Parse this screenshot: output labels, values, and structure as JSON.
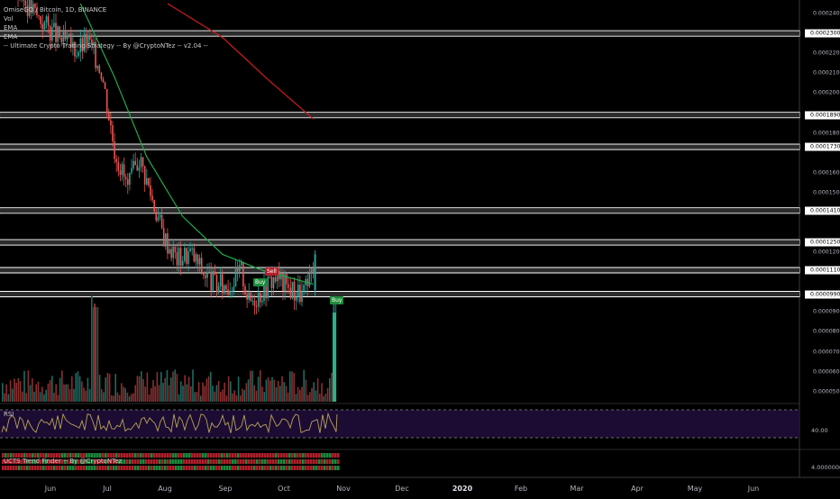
{
  "header": {
    "symbol_line": "OmiseGO / Bitcoin, 1D, BINANCE",
    "indicators": [
      "Vol",
      "EMA",
      "EMA",
      "-- Ultimate Crypto Trading Strategy -- By @CryptoNTez -- v2.04 --"
    ]
  },
  "panes": {
    "rsi_title": "RSI",
    "rsi_value_label": "40.00",
    "trend_title": "UCTS Trend Finder -- By @CryptoNTez",
    "trend_value_label": "4.00000000"
  },
  "x_axis": {
    "months": [
      "Jun",
      "Jul",
      "Aug",
      "Sep",
      "Oct",
      "Nov",
      "Dec",
      "2020",
      "Feb",
      "Mar",
      "Apr",
      "May",
      "Jun"
    ]
  },
  "y_axis": {
    "ticks": [
      "0.00024000",
      "0.00022000",
      "0.00021000",
      "0.00020000",
      "0.00018000",
      "0.00016000",
      "0.00015000",
      "0.00012000",
      "0.00009000",
      "0.00008000",
      "0.00007000",
      "0.00006000",
      "0.00005000"
    ],
    "level_labels": [
      "0.00023000",
      "0.00018900",
      "0.00017300",
      "0.00014100",
      "0.00012500",
      "0.00011100",
      "0.00009900"
    ]
  },
  "signals": [
    {
      "text": "Buy",
      "type": "buy"
    },
    {
      "text": "Sell",
      "type": "sell"
    },
    {
      "text": "Buy",
      "type": "buy"
    }
  ],
  "colors": {
    "background": "#000000",
    "up": "#26a69a",
    "down": "#ef5350",
    "ema_fast": "#1faa4c",
    "ema_slow": "#d11a1a",
    "rsi": "#b8a35a",
    "rsi_band": "#1c0c33",
    "level_band": "#ffffff"
  },
  "chart_data": {
    "type": "candlestick",
    "title": "OmiseGO / Bitcoin, 1D, BINANCE",
    "ylim": [
      4.4e-05,
      0.000245
    ],
    "levels": [
      0.00023,
      0.000189,
      0.000173,
      0.000141,
      0.000125,
      0.000111,
      9.9e-05
    ],
    "trend": [
      {
        "date": "2019-05-25",
        "close": 0.00025
      },
      {
        "date": "2019-06-05",
        "close": 0.000238
      },
      {
        "date": "2019-06-15",
        "close": 0.000228
      },
      {
        "date": "2019-06-25",
        "close": 0.000222
      },
      {
        "date": "2019-07-01",
        "close": 0.000226
      },
      {
        "date": "2019-07-08",
        "close": 0.000212
      },
      {
        "date": "2019-07-15",
        "close": 0.000172
      },
      {
        "date": "2019-07-22",
        "close": 0.000152
      },
      {
        "date": "2019-07-28",
        "close": 0.000168
      },
      {
        "date": "2019-08-03",
        "close": 0.00015
      },
      {
        "date": "2019-08-10",
        "close": 0.000128
      },
      {
        "date": "2019-08-17",
        "close": 0.000117
      },
      {
        "date": "2019-08-24",
        "close": 0.00012
      },
      {
        "date": "2019-08-31",
        "close": 0.00011
      },
      {
        "date": "2019-09-07",
        "close": 0.000103
      },
      {
        "date": "2019-09-14",
        "close": 0.000104
      },
      {
        "date": "2019-09-20",
        "close": 0.000111
      },
      {
        "date": "2019-09-24",
        "close": 9.5e-05
      },
      {
        "date": "2019-10-01",
        "close": 0.000101
      },
      {
        "date": "2019-10-08",
        "close": 0.000108
      },
      {
        "date": "2019-10-15",
        "close": 0.000102
      },
      {
        "date": "2019-10-22",
        "close": 9.9e-05
      },
      {
        "date": "2019-10-26",
        "close": 0.000104
      },
      {
        "date": "2019-10-28",
        "close": 0.000115
      }
    ],
    "ema_fast": [
      {
        "date": "2019-06-27",
        "value": 0.000245
      },
      {
        "date": "2019-07-15",
        "value": 0.000208
      },
      {
        "date": "2019-08-01",
        "value": 0.000168
      },
      {
        "date": "2019-08-20",
        "value": 0.000138
      },
      {
        "date": "2019-09-10",
        "value": 0.000119
      },
      {
        "date": "2019-10-01",
        "value": 0.000111
      },
      {
        "date": "2019-10-28",
        "value": 0.000104
      }
    ],
    "ema_slow": [
      {
        "date": "2019-08-12",
        "value": 0.000245
      },
      {
        "date": "2019-09-10",
        "value": 0.000228
      },
      {
        "date": "2019-10-05",
        "value": 0.000206
      },
      {
        "date": "2019-10-28",
        "value": 0.000187
      }
    ],
    "volume_spike": {
      "date": "2019-10-28",
      "value": "tallest bar"
    }
  }
}
